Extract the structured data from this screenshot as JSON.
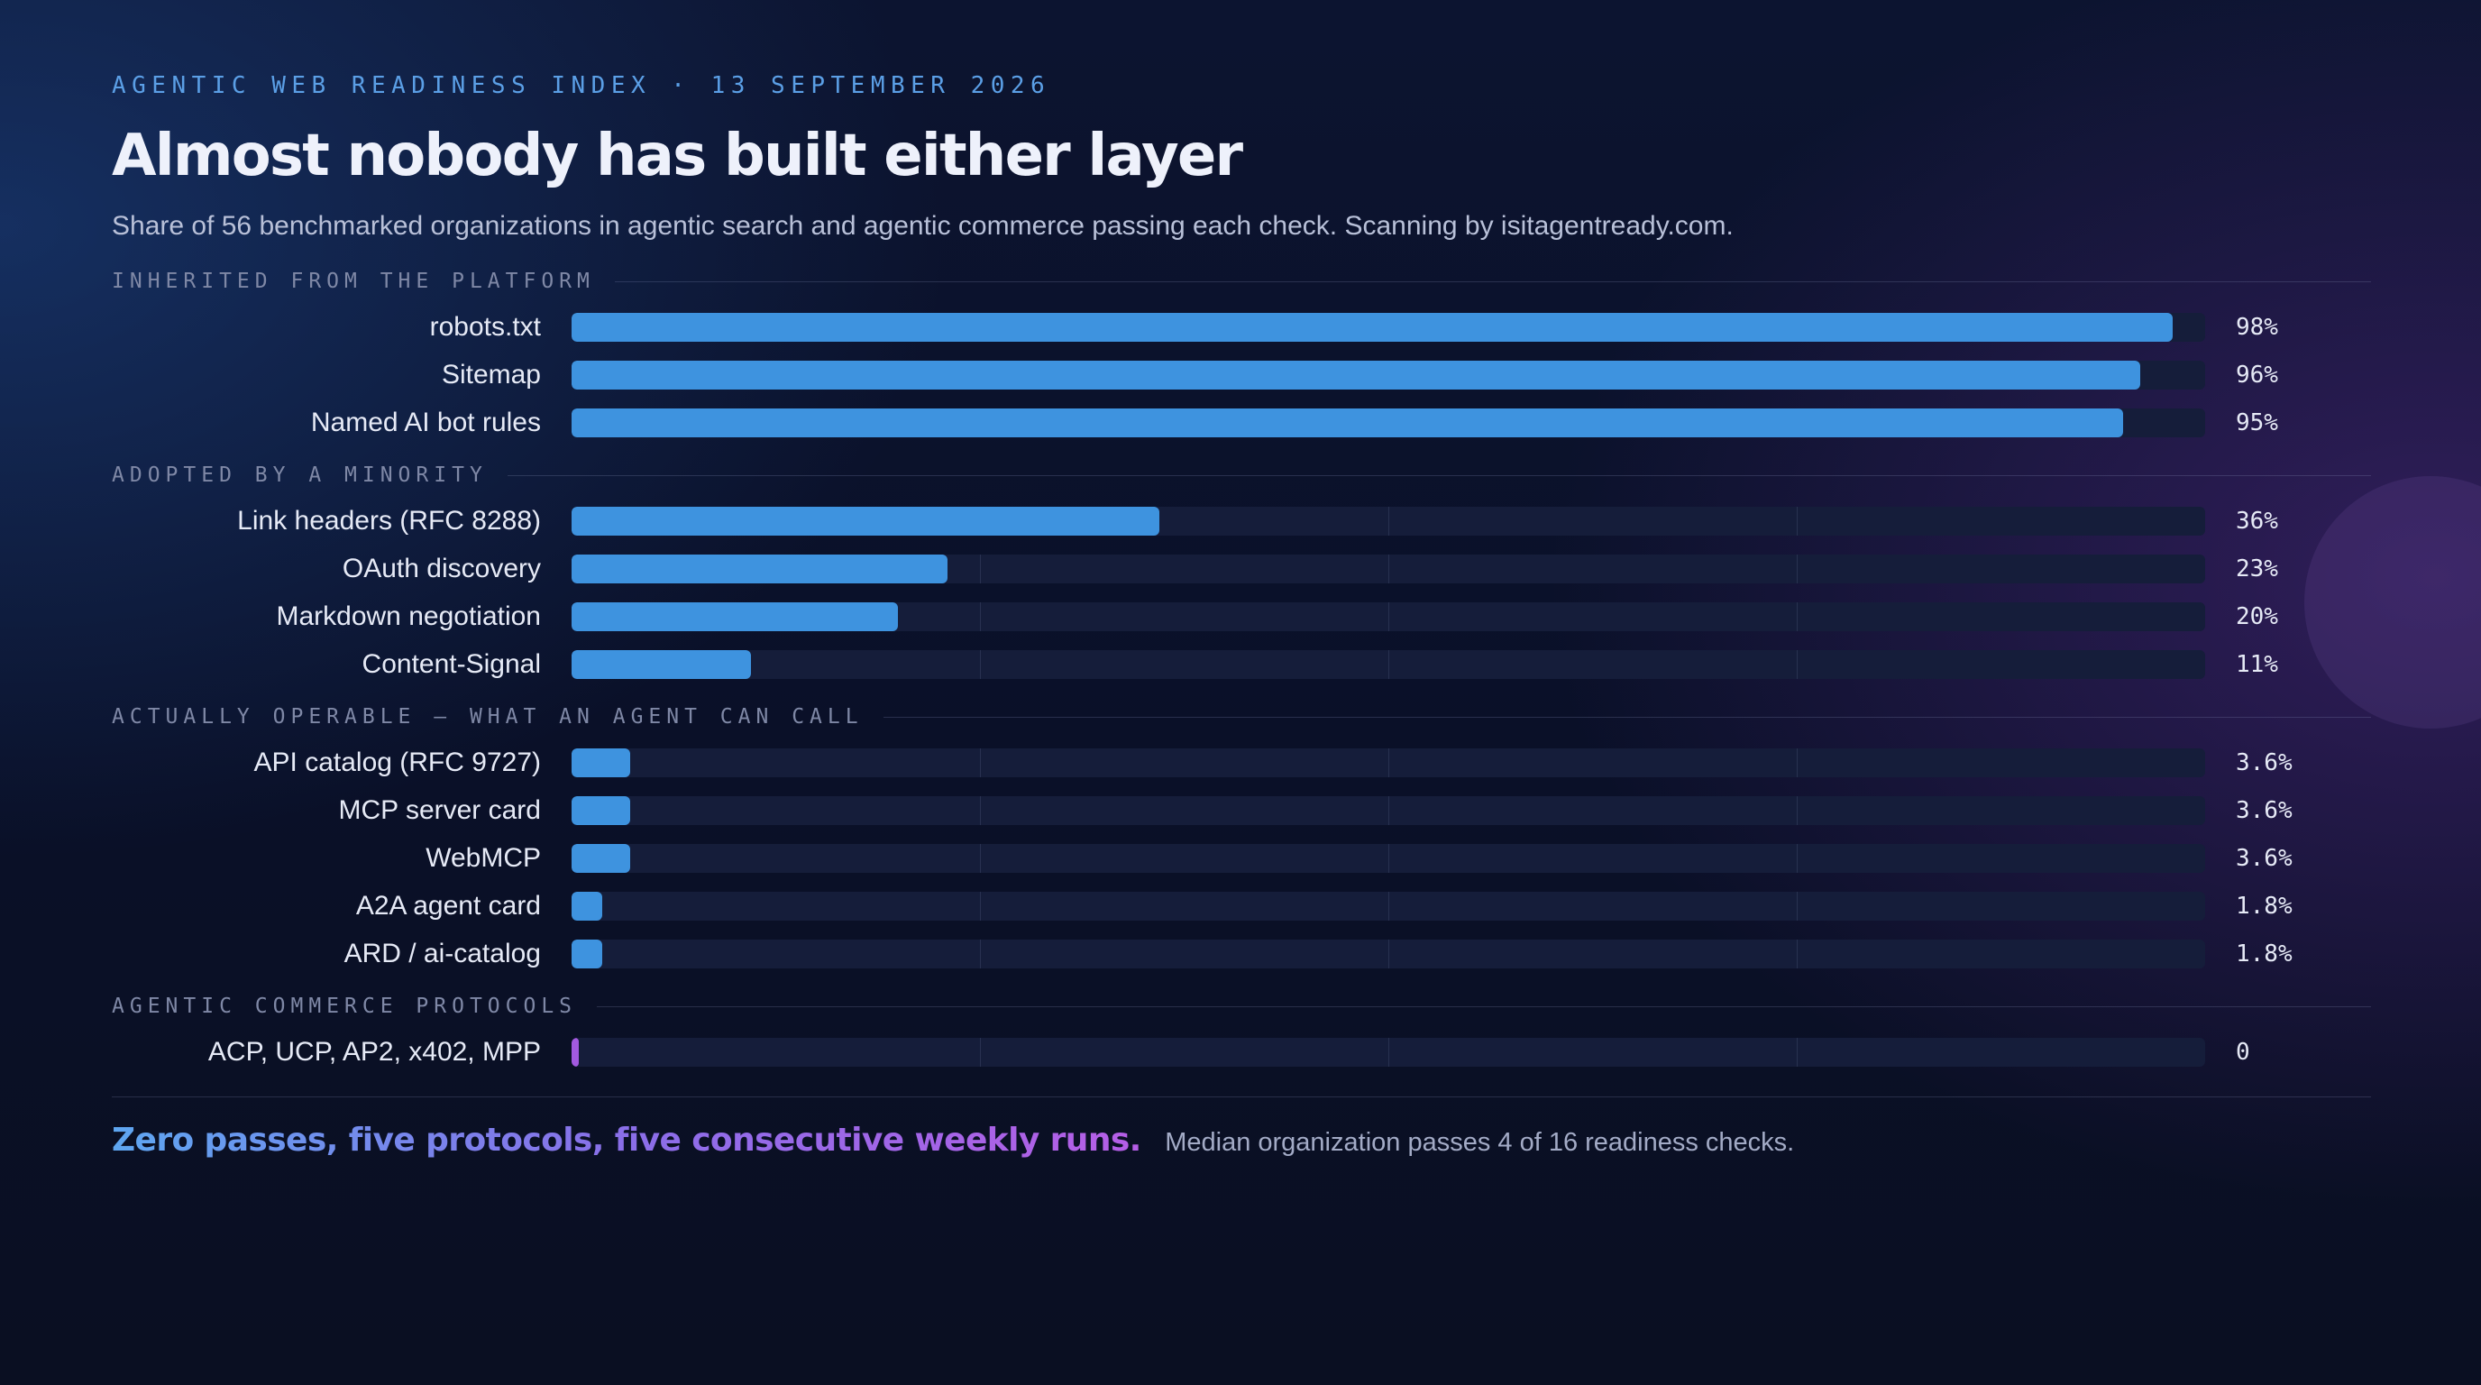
{
  "header": {
    "eyebrow": "AGENTIC WEB READINESS INDEX · 13 SEPTEMBER 2026",
    "title": "Almost nobody has built either layer",
    "subtitle": "Share of 56 benchmarked organizations in agentic search and agentic commerce passing each check. Scanning by isitagentready.com."
  },
  "footer": {
    "headline": "Zero passes, five protocols, five consecutive weekly runs.",
    "note": "Median organization passes 4 of 16 readiness checks."
  },
  "colors": {
    "bar": "#3e93df",
    "zero_bar": "#a35ae0",
    "track": "#151d3a",
    "eyebrow": "#5b9fe6"
  },
  "chart_data": {
    "type": "bar",
    "orientation": "horizontal",
    "xlim": [
      0,
      100
    ],
    "unit": "%",
    "grid": true,
    "groups": [
      {
        "label": "INHERITED FROM THE PLATFORM",
        "items": [
          {
            "label": "robots.txt",
            "value": 98,
            "display": "98%"
          },
          {
            "label": "Sitemap",
            "value": 96,
            "display": "96%"
          },
          {
            "label": "Named AI bot rules",
            "value": 95,
            "display": "95%"
          }
        ]
      },
      {
        "label": "ADOPTED BY A MINORITY",
        "items": [
          {
            "label": "Link headers (RFC 8288)",
            "value": 36,
            "display": "36%"
          },
          {
            "label": "OAuth discovery",
            "value": 23,
            "display": "23%"
          },
          {
            "label": "Markdown negotiation",
            "value": 20,
            "display": "20%"
          },
          {
            "label": "Content-Signal",
            "value": 11,
            "display": "11%"
          }
        ]
      },
      {
        "label": "ACTUALLY OPERABLE — WHAT AN AGENT CAN CALL",
        "items": [
          {
            "label": "API catalog (RFC 9727)",
            "value": 3.6,
            "display": "3.6%"
          },
          {
            "label": "MCP server card",
            "value": 3.6,
            "display": "3.6%"
          },
          {
            "label": "WebMCP",
            "value": 3.6,
            "display": "3.6%"
          },
          {
            "label": "A2A agent card",
            "value": 1.8,
            "display": "1.8%"
          },
          {
            "label": "ARD / ai-catalog",
            "value": 1.8,
            "display": "1.8%"
          }
        ]
      },
      {
        "label": "AGENTIC COMMERCE PROTOCOLS",
        "items": [
          {
            "label": "ACP, UCP, AP2, x402, MPP",
            "value": 0,
            "display": "0"
          }
        ]
      }
    ]
  }
}
